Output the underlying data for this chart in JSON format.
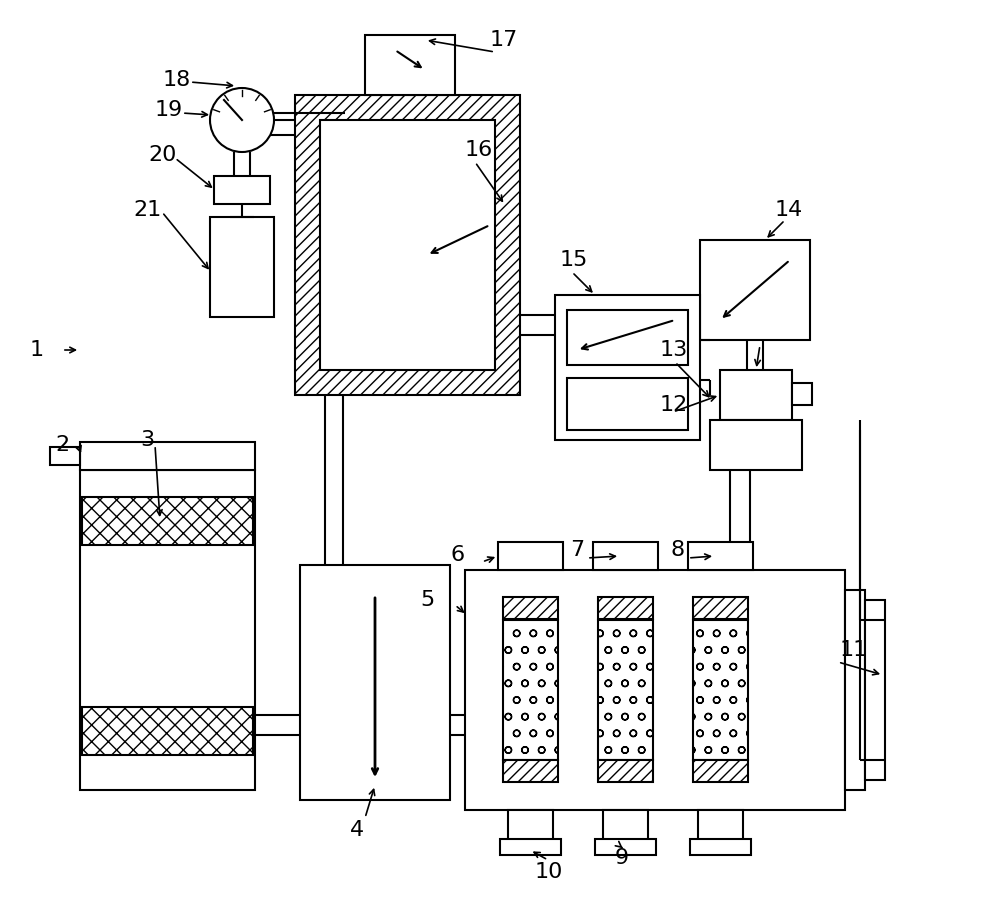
{
  "bg_color": "#ffffff",
  "lw": 1.5,
  "fig_width": 10.0,
  "fig_height": 9.1,
  "dpi": 100
}
